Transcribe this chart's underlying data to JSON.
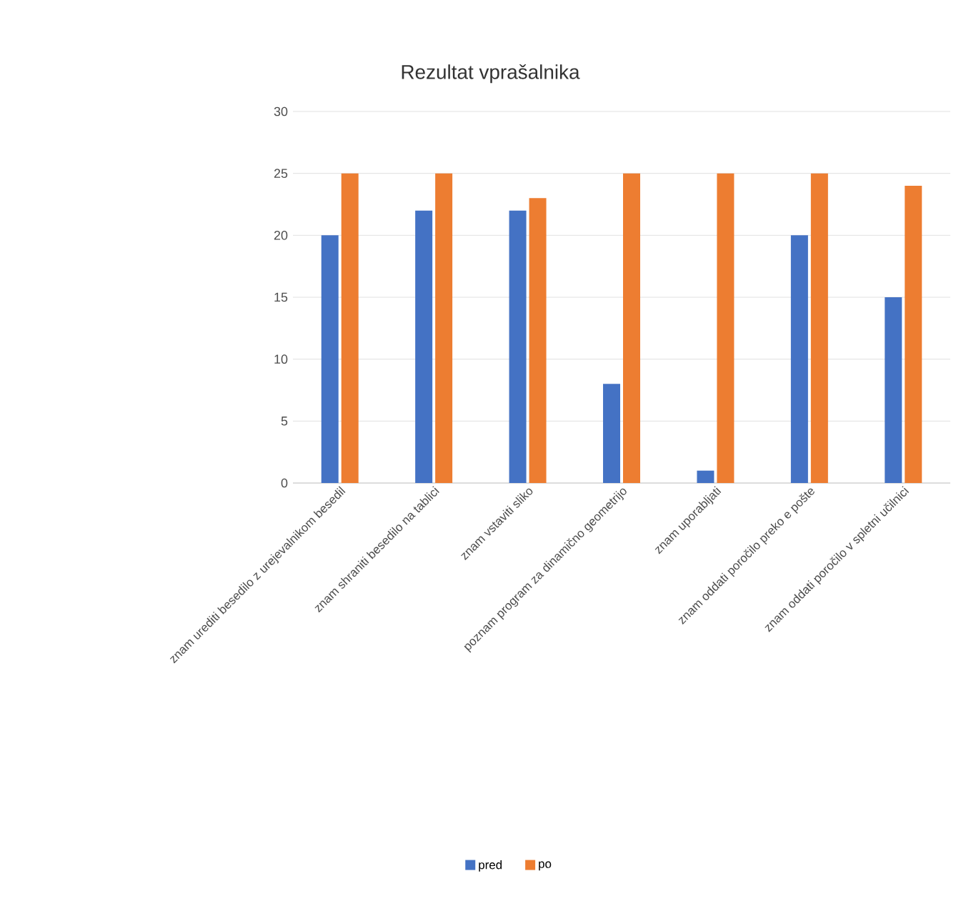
{
  "chart_data": {
    "type": "bar",
    "title": "Rezultat vprašalnika",
    "categories": [
      "znam urediti besedilo z urejevalnikom besedil",
      "znam shraniti besedilo na tablici",
      "znam vstaviti sliko",
      "poznam program za dinamično geometrijo",
      "znam uporabljati",
      "znam oddati poročilo preko e pošte",
      "znam oddati poročilo v spletni učilnici"
    ],
    "series": [
      {
        "name": "pred",
        "color": "#4472c4",
        "values": [
          20,
          22,
          22,
          8,
          1,
          20,
          15
        ]
      },
      {
        "name": "po",
        "color": "#ed7d31",
        "values": [
          25,
          25,
          23,
          25,
          25,
          25,
          24
        ]
      }
    ],
    "ylim": [
      0,
      30
    ],
    "yticks": [
      0,
      5,
      10,
      15,
      20,
      25,
      30
    ],
    "grid": "y",
    "legend": "bottom"
  }
}
